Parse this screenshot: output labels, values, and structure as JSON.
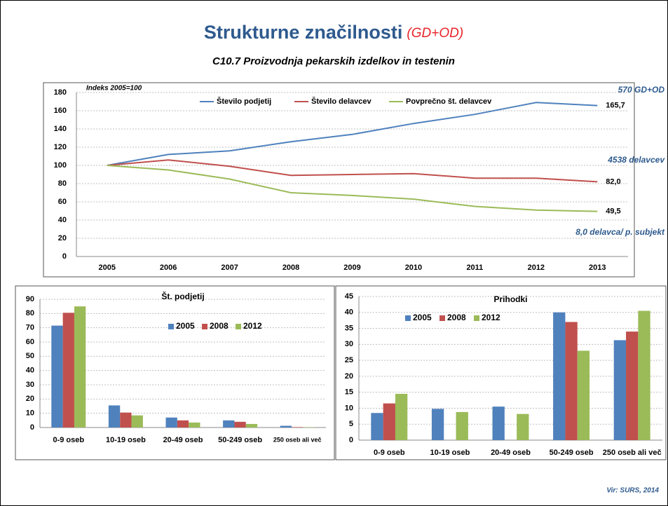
{
  "slide": {
    "title": "Strukturne značilnosti",
    "title_note": "(GD+OD)",
    "subtitle": "C10.7 Proizvodnja pekarskih izdelkov in testenin",
    "source": "Vir: SURS, 2014"
  },
  "chart_data": [
    {
      "type": "line",
      "annotations": [
        "Indeks 2005=100",
        "570 GD+OD",
        "4538 delavcev",
        "8,0 delavca/ p. subjekt"
      ],
      "categories": [
        "2005",
        "2006",
        "2007",
        "2008",
        "2009",
        "2010",
        "2011",
        "2012",
        "2013"
      ],
      "ylim": [
        0,
        180
      ],
      "yticks": [
        0,
        20,
        40,
        60,
        80,
        100,
        120,
        140,
        160,
        180
      ],
      "grid": true,
      "legend": "top",
      "series": [
        {
          "name": "Število podjetij",
          "color": "#4f81bd",
          "values": [
            100,
            112,
            116,
            126,
            134,
            146,
            156,
            169,
            165.7
          ],
          "value_labels": [
            null,
            null,
            null,
            null,
            null,
            null,
            null,
            null,
            "165,7"
          ]
        },
        {
          "name": "Število delavcev",
          "color": "#c0504d",
          "values": [
            100,
            106,
            99,
            89,
            90,
            91,
            86,
            86,
            82.0
          ],
          "value_labels": [
            null,
            null,
            null,
            null,
            null,
            null,
            null,
            null,
            "82,0"
          ]
        },
        {
          "name": "Povprečno št. delavcev",
          "color": "#9bbb59",
          "values": [
            100,
            95,
            85,
            70,
            67,
            63,
            55,
            51,
            49.5
          ],
          "value_labels": [
            null,
            null,
            null,
            null,
            null,
            null,
            null,
            null,
            "49,5"
          ]
        }
      ]
    },
    {
      "type": "bar",
      "title": "Št. podjetij",
      "categories": [
        "0-9 oseb",
        "10-19 oseb",
        "20-49 oseb",
        "50-249 oseb",
        "250 oseb ali več"
      ],
      "ylim": [
        0,
        90
      ],
      "yticks": [
        0,
        10,
        20,
        30,
        40,
        50,
        60,
        70,
        80,
        90
      ],
      "grid": true,
      "legend": "top",
      "series": [
        {
          "name": "2005",
          "color": "#4f81bd",
          "values": [
            71.5,
            15.5,
            7,
            5,
            1.2
          ]
        },
        {
          "name": "2008",
          "color": "#c0504d",
          "values": [
            80.5,
            10.5,
            5,
            4,
            0.3
          ]
        },
        {
          "name": "2012",
          "color": "#9bbb59",
          "values": [
            85,
            8.5,
            3.5,
            2.5,
            0.2
          ]
        }
      ]
    },
    {
      "type": "bar",
      "title": "Prihodki",
      "categories": [
        "0-9 oseb",
        "10-19 oseb",
        "20-49 oseb",
        "50-249 oseb",
        "250 oseb ali več"
      ],
      "ylim": [
        0,
        45
      ],
      "yticks": [
        0,
        5,
        10,
        15,
        20,
        25,
        30,
        35,
        40,
        45
      ],
      "grid": true,
      "legend": "top",
      "series": [
        {
          "name": "2005",
          "color": "#4f81bd",
          "values": [
            8.5,
            9.8,
            10.5,
            40,
            31.3
          ]
        },
        {
          "name": "2008",
          "color": "#c0504d",
          "values": [
            11.5,
            null,
            null,
            37,
            34
          ]
        },
        {
          "name": "2012",
          "color": "#9bbb59",
          "values": [
            14.5,
            8.8,
            8.2,
            28,
            40.5
          ]
        }
      ]
    }
  ]
}
